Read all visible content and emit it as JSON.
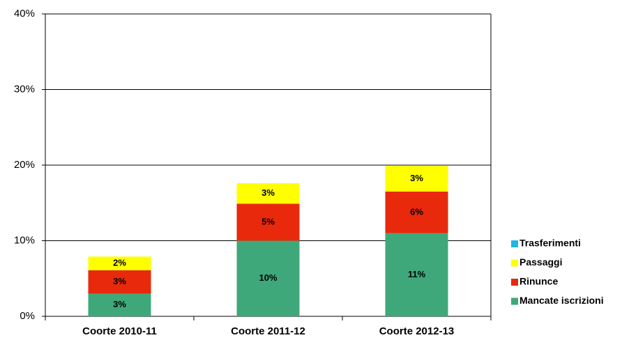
{
  "chart_data": {
    "type": "stacked_bar",
    "categories": [
      "Coorte 2010-11",
      "Coorte 2011-12",
      "Coorte 2012-13"
    ],
    "series": [
      {
        "name": "Mancate iscrizioni",
        "color": "#3fa87a",
        "values": [
          3.0,
          10.0,
          11.0
        ],
        "value_labels": [
          "3%",
          "10%",
          "11%"
        ]
      },
      {
        "name": "Rinunce",
        "color": "#e8290b",
        "values": [
          3.1,
          4.9,
          5.5
        ],
        "value_labels": [
          "3%",
          "5%",
          "6%"
        ]
      },
      {
        "name": "Passaggi",
        "color": "#ffff00",
        "values": [
          1.8,
          2.7,
          3.4
        ],
        "value_labels": [
          "2%",
          "3%",
          "3%"
        ]
      },
      {
        "name": "Trasferimenti",
        "color": "#1fb5e8",
        "values": [
          0,
          0,
          0
        ]
      }
    ],
    "ylim": [
      0,
      40
    ],
    "yticks": [
      {
        "value": 0,
        "label": "0%"
      },
      {
        "value": 10,
        "label": "10%"
      },
      {
        "value": 20,
        "label": "20%"
      },
      {
        "value": 30,
        "label": "30%"
      },
      {
        "value": 40,
        "label": "40%"
      }
    ],
    "grid": true,
    "legend": "right"
  }
}
